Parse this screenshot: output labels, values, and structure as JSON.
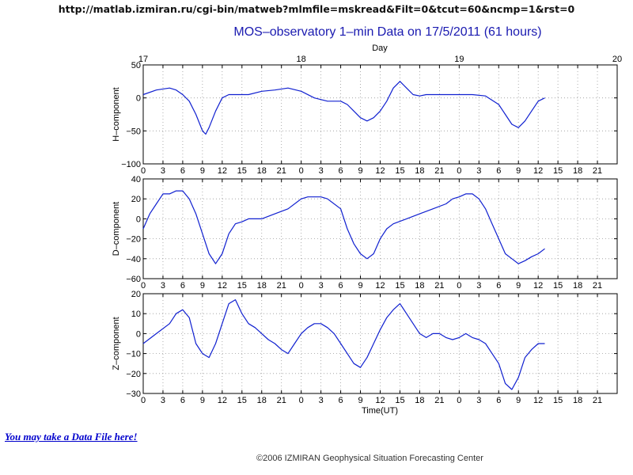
{
  "page": {
    "url_text": "http://matlab.izmiran.ru/cgi-bin/matweb?mlmfile=mskread&Filt=0&tcut=60&ncmp=1&rst=0",
    "data_link": "You may take a Data File here!",
    "copyright": "©2006 IZMIRAN Geophysical Situation Forecasting Center"
  },
  "colors": {
    "trace": "#1020d0",
    "axis": "#000000",
    "grid": "#999999",
    "title": "#1a1ab0"
  },
  "chart_data": {
    "type": "line",
    "title": "MOS–observatory 1–min Data on 17/5/2011 (61 hours)",
    "top_axis": {
      "label": "Day",
      "ticks": [
        "17",
        "18",
        "19",
        "20"
      ]
    },
    "x_ticks": [
      "0",
      "3",
      "6",
      "9",
      "12",
      "15",
      "18",
      "21",
      "0",
      "3",
      "6",
      "9",
      "12",
      "15",
      "18",
      "21",
      "0",
      "3",
      "6",
      "9",
      "12",
      "15",
      "18",
      "21"
    ],
    "xlabel": "Time(UT)",
    "xlim_hours": [
      0,
      72
    ],
    "grid": true,
    "panels": [
      {
        "ylabel": "H–component",
        "ylim": [
          -100,
          50
        ],
        "yticks": [
          "50",
          "0",
          "−50",
          "−100"
        ],
        "x_hours": [
          0,
          2,
          4,
          5,
          6,
          7,
          8,
          9,
          9.5,
          10,
          11,
          12,
          13,
          14,
          16,
          18,
          20,
          22,
          24,
          26,
          28,
          30,
          31,
          32,
          33,
          34,
          35,
          36,
          37,
          38,
          39,
          40,
          41,
          42,
          43,
          44,
          46,
          48,
          50,
          52,
          54,
          55,
          56,
          57,
          58,
          59,
          60,
          61
        ],
        "values": [
          5,
          12,
          15,
          12,
          5,
          -5,
          -25,
          -50,
          -55,
          -45,
          -20,
          0,
          5,
          5,
          5,
          10,
          12,
          15,
          10,
          0,
          -5,
          -5,
          -10,
          -20,
          -30,
          -35,
          -30,
          -20,
          -5,
          15,
          25,
          15,
          5,
          3,
          5,
          5,
          5,
          5,
          5,
          3,
          -10,
          -25,
          -40,
          -45,
          -35,
          -20,
          -5,
          0
        ]
      },
      {
        "ylabel": "D–component",
        "ylim": [
          -60,
          40
        ],
        "yticks": [
          "40",
          "20",
          "0",
          "−20",
          "−40",
          "−60"
        ],
        "x_hours": [
          0,
          1,
          2,
          3,
          4,
          5,
          6,
          7,
          8,
          9,
          10,
          11,
          12,
          13,
          14,
          15,
          16,
          18,
          20,
          22,
          24,
          25,
          26,
          27,
          28,
          30,
          31,
          32,
          33,
          34,
          35,
          36,
          37,
          38,
          40,
          42,
          44,
          46,
          47,
          48,
          49,
          50,
          51,
          52,
          53,
          54,
          55,
          56,
          57,
          58,
          59,
          60,
          61
        ],
        "values": [
          -10,
          5,
          15,
          25,
          25,
          28,
          28,
          20,
          5,
          -15,
          -35,
          -45,
          -35,
          -15,
          -5,
          -3,
          0,
          0,
          5,
          10,
          20,
          22,
          22,
          22,
          20,
          10,
          -10,
          -25,
          -35,
          -40,
          -35,
          -20,
          -10,
          -5,
          0,
          5,
          10,
          15,
          20,
          22,
          25,
          25,
          20,
          10,
          -5,
          -20,
          -35,
          -40,
          -45,
          -42,
          -38,
          -35,
          -30
        ]
      },
      {
        "ylabel": "Z–component",
        "ylim": [
          -30,
          20
        ],
        "yticks": [
          "20",
          "10",
          "0",
          "−10",
          "−20",
          "−30"
        ],
        "x_hours": [
          0,
          2,
          4,
          5,
          6,
          7,
          8,
          9,
          10,
          11,
          12,
          13,
          14,
          15,
          16,
          17,
          18,
          19,
          20,
          21,
          22,
          23,
          24,
          25,
          26,
          27,
          28,
          29,
          30,
          31,
          32,
          33,
          34,
          35,
          36,
          37,
          38,
          39,
          40,
          41,
          42,
          43,
          44,
          45,
          46,
          47,
          48,
          49,
          50,
          51,
          52,
          53,
          54,
          55,
          56,
          57,
          58,
          59,
          60,
          61
        ],
        "values": [
          -5,
          0,
          5,
          10,
          12,
          8,
          -5,
          -10,
          -12,
          -5,
          5,
          15,
          17,
          10,
          5,
          3,
          0,
          -3,
          -5,
          -8,
          -10,
          -5,
          0,
          3,
          5,
          5,
          3,
          0,
          -5,
          -10,
          -15,
          -17,
          -12,
          -5,
          2,
          8,
          12,
          15,
          10,
          5,
          0,
          -2,
          0,
          0,
          -2,
          -3,
          -2,
          0,
          -2,
          -3,
          -5,
          -10,
          -15,
          -25,
          -28,
          -22,
          -12,
          -8,
          -5,
          -5
        ]
      }
    ]
  }
}
